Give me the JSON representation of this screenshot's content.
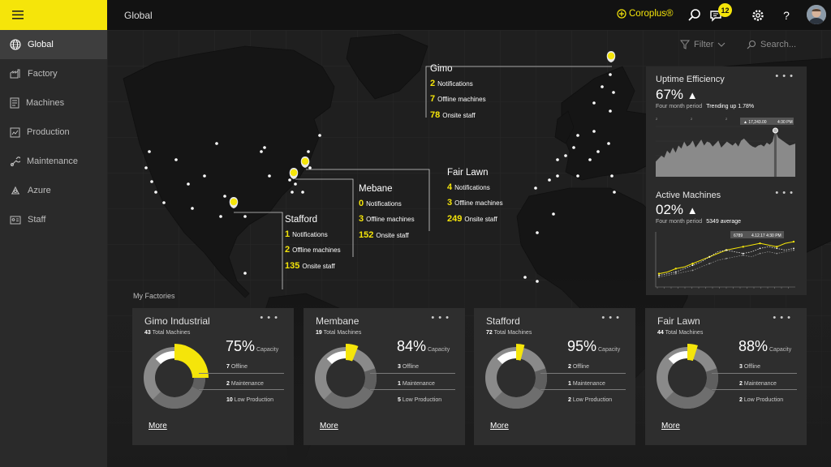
{
  "header": {
    "title": "Global",
    "brand": "Coroplus®",
    "notification_count": "12"
  },
  "sidebar": {
    "items": [
      {
        "label": "Global",
        "icon": "globe-icon",
        "active": true
      },
      {
        "label": "Factory",
        "icon": "factory-icon"
      },
      {
        "label": "Machines",
        "icon": "machines-icon"
      },
      {
        "label": "Production",
        "icon": "production-icon"
      },
      {
        "label": "Maintenance",
        "icon": "maintenance-icon"
      },
      {
        "label": "Azure",
        "icon": "azure-icon"
      },
      {
        "label": "Staff",
        "icon": "staff-icon"
      }
    ]
  },
  "toolbar": {
    "filter_label": "Filter",
    "search_placeholder": "Search..."
  },
  "map_labels": [
    {
      "id": "gimo",
      "name": "Gimo",
      "notifications": "2",
      "offline": "7",
      "staff": "78"
    },
    {
      "id": "fairlawn",
      "name": "Fair Lawn",
      "notifications": "4",
      "offline": "3",
      "staff": "249"
    },
    {
      "id": "mebane",
      "name": "Mebane",
      "notifications": "0",
      "offline": "3",
      "staff": "152"
    },
    {
      "id": "stafford",
      "name": "Stafford",
      "notifications": "1",
      "offline": "2",
      "staff": "135"
    }
  ],
  "map_text": {
    "notifications": "Notifications",
    "offline": "Offline machines",
    "staff": "Onsite staff"
  },
  "uptime": {
    "title": "Uptime Efficiency",
    "value": "67%",
    "trend_symbol": "▲",
    "period": "Four month period",
    "note": "Trending up 1.78%",
    "tooltip_value": "▲ 17,243.00",
    "tooltip_time": "4:30 PM",
    "axis_labels": [
      "2",
      "2",
      "2"
    ],
    "chart_data": {
      "type": "area",
      "values": [
        30,
        36,
        42,
        38,
        52,
        46,
        58,
        48,
        62,
        56,
        70,
        60,
        64,
        72,
        58,
        66,
        74,
        62,
        70,
        68,
        60,
        66,
        72,
        58,
        64,
        70,
        66,
        62,
        68,
        60,
        72,
        76,
        70,
        64,
        60,
        58,
        62,
        64,
        60,
        68,
        64,
        70,
        92,
        78,
        74,
        70,
        66,
        62,
        64,
        66
      ],
      "highlight_index": 42
    }
  },
  "active": {
    "title": "Active Machines",
    "value": "02%",
    "trend_symbol": "▲",
    "period": "Four month period",
    "note": "5349 average",
    "tooltip_value": "6789",
    "tooltip_time": "4.12.17 4:30 PM",
    "chart_data": {
      "type": "line",
      "series": [
        {
          "values": [
            10,
            12,
            16,
            18,
            22,
            26,
            30,
            34,
            38,
            40,
            42,
            44,
            46,
            44,
            42,
            46,
            48
          ]
        },
        {
          "values": [
            8,
            10,
            12,
            16,
            20,
            24,
            30,
            36,
            38,
            36,
            34,
            36,
            40,
            42,
            40,
            38,
            40
          ]
        },
        {
          "values": [
            6,
            8,
            10,
            12,
            14,
            18,
            22,
            26,
            28,
            30,
            32,
            30,
            34,
            36,
            34,
            36,
            38
          ]
        }
      ]
    }
  },
  "my_factories_label": "My Factories",
  "factories": [
    {
      "name": "Gimo Industrial",
      "total": "43",
      "total_label": "Total Machines",
      "capacity": "75%",
      "capacity_label": "Capacity",
      "offline": "7",
      "maintenance": "2",
      "low_production": "10",
      "more": "More",
      "highlight_pct": 0.25
    },
    {
      "name": "Membane",
      "total": "19",
      "total_label": "Total Machines",
      "capacity": "84%",
      "capacity_label": "Capacity",
      "offline": "3",
      "maintenance": "1",
      "low_production": "5",
      "more": "More",
      "highlight_pct": 0.06
    },
    {
      "name": "Stafford",
      "total": "72",
      "total_label": "Total Machines",
      "capacity": "95%",
      "capacity_label": "Capacity",
      "offline": "2",
      "maintenance": "1",
      "low_production": "2",
      "more": "More",
      "highlight_pct": 0.04
    },
    {
      "name": "Fair Lawn",
      "total": "44",
      "total_label": "Total Machines",
      "capacity": "88%",
      "capacity_label": "Capacity",
      "offline": "3",
      "maintenance": "2",
      "low_production": "2",
      "more": "More",
      "highlight_pct": 0.05
    }
  ],
  "factory_text": {
    "offline": "Offline",
    "maintenance": "Maintenance",
    "low_production": "Low Production"
  },
  "colors": {
    "accent": "#f5e50a",
    "card": "#2e2e2e",
    "panel": "#2b2b2b"
  }
}
